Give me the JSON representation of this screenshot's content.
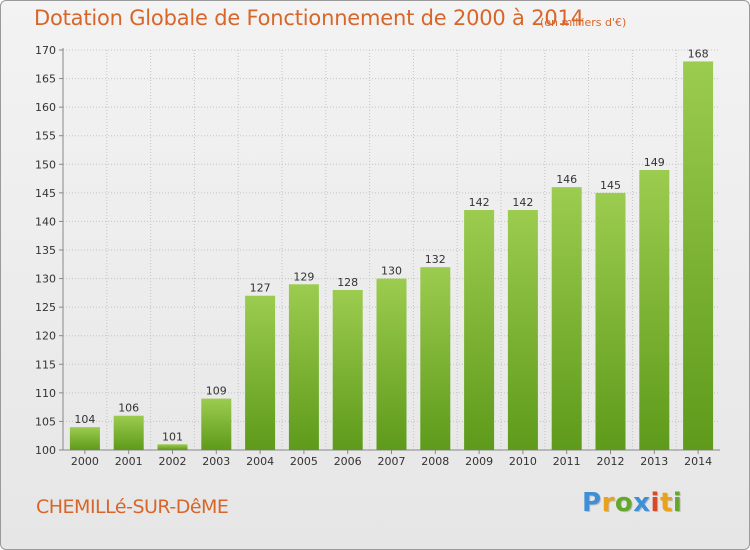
{
  "header": {
    "title": "Dotation Globale de Fonctionnement de 2000 à 2014",
    "subtitle": "(en milliers d'€)"
  },
  "footer": {
    "commune": "CHEMILLé-SUR-DêME",
    "logo": "Proxiti"
  },
  "colors": {
    "title": "#d8662a",
    "bar_top": "#9ccc4f",
    "bar_bottom": "#5e9a1b",
    "logo_letters": [
      "#3f8fd6",
      "#e8a21c",
      "#63a82a",
      "#3f8fd6",
      "#d64a2a",
      "#e8a21c",
      "#63a82a"
    ]
  },
  "chart_data": {
    "type": "bar",
    "categories": [
      "2000",
      "2001",
      "2002",
      "2003",
      "2004",
      "2005",
      "2006",
      "2007",
      "2008",
      "2009",
      "2010",
      "2011",
      "2012",
      "2013",
      "2014"
    ],
    "values": [
      104,
      106,
      101,
      109,
      127,
      129,
      128,
      130,
      132,
      142,
      142,
      146,
      145,
      149,
      168
    ],
    "ylim": [
      100,
      170
    ],
    "yticks": [
      100,
      105,
      110,
      115,
      120,
      125,
      130,
      135,
      140,
      145,
      150,
      155,
      160,
      165,
      170
    ],
    "grid": true,
    "show_value_labels": true
  }
}
